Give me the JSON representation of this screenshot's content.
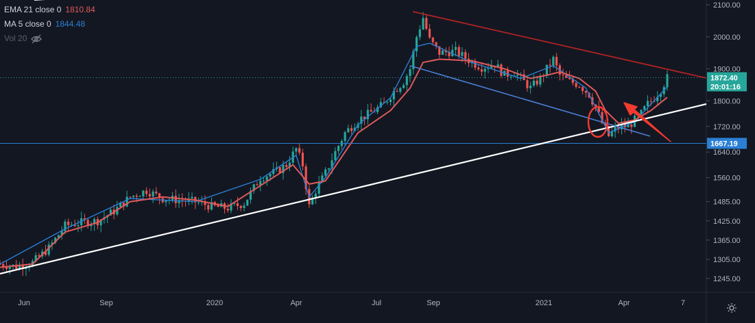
{
  "legend": {
    "ema_label": "EMA 21 close 0",
    "ema_value": "1810.84",
    "ma_label": "MA 5 close 0",
    "ma_value": "1844.48",
    "vol_label": "Vol 20",
    "vol_icon": "eye-crossed-icon"
  },
  "price_scale": {
    "last_price": "1872.40",
    "countdown": "20:01:16",
    "horizontal_level": "1667.19"
  },
  "colors": {
    "background": "#131722",
    "candle_up": "#26a69a",
    "candle_down": "#ef5350",
    "ema": "#e05a5a",
    "ma": "#2a7fd4",
    "trend_red": "#b22222",
    "trend_blue": "#4a7fd4",
    "trend_white": "#ffffff",
    "hline": "#2a7fd4",
    "annotation_red": "#f23a2f",
    "badge_green": "#26a69a",
    "badge_blue": "#2a7fd4"
  },
  "chart_data": {
    "type": "candlestick",
    "x_ticks": [
      "Jun",
      "Sep",
      "2020",
      "Apr",
      "Jul",
      "Sep",
      "2021",
      "Apr",
      "7"
    ],
    "y_ticks": [
      2100,
      2000,
      1900,
      1800,
      1720,
      1640,
      1560,
      1485,
      1425,
      1365,
      1305,
      1245
    ],
    "ylim": [
      1205,
      2110
    ],
    "close_series": [
      [
        0,
        1290
      ],
      [
        5,
        1282
      ],
      [
        10,
        1295
      ],
      [
        15,
        1340
      ],
      [
        20,
        1410
      ],
      [
        25,
        1420
      ],
      [
        30,
        1425
      ],
      [
        35,
        1455
      ],
      [
        40,
        1500
      ],
      [
        45,
        1520
      ],
      [
        50,
        1495
      ],
      [
        55,
        1490
      ],
      [
        60,
        1485
      ],
      [
        65,
        1470
      ],
      [
        70,
        1465
      ],
      [
        75,
        1480
      ],
      [
        80,
        1560
      ],
      [
        85,
        1580
      ],
      [
        88,
        1600
      ],
      [
        91,
        1650
      ],
      [
        93,
        1600
      ],
      [
        95,
        1470
      ],
      [
        97,
        1520
      ],
      [
        100,
        1575
      ],
      [
        103,
        1640
      ],
      [
        106,
        1700
      ],
      [
        110,
        1740
      ],
      [
        115,
        1770
      ],
      [
        118,
        1790
      ],
      [
        121,
        1830
      ],
      [
        124,
        1860
      ],
      [
        126,
        1900
      ],
      [
        128,
        2000
      ],
      [
        130,
        2060
      ],
      [
        132,
        1990
      ],
      [
        135,
        1950
      ],
      [
        140,
        1955
      ],
      [
        145,
        1920
      ],
      [
        148,
        1905
      ],
      [
        152,
        1915
      ],
      [
        155,
        1880
      ],
      [
        158,
        1890
      ],
      [
        161,
        1860
      ],
      [
        163,
        1840
      ],
      [
        166,
        1870
      ],
      [
        168,
        1900
      ],
      [
        170,
        1930
      ],
      [
        172,
        1880
      ],
      [
        175,
        1860
      ],
      [
        178,
        1850
      ],
      [
        181,
        1820
      ],
      [
        183,
        1780
      ],
      [
        185,
        1730
      ],
      [
        187,
        1690
      ],
      [
        189,
        1710
      ],
      [
        191,
        1720
      ],
      [
        193,
        1720
      ],
      [
        195,
        1740
      ],
      [
        197,
        1760
      ],
      [
        199,
        1790
      ],
      [
        201,
        1810
      ],
      [
        203,
        1835
      ],
      [
        205,
        1872
      ]
    ],
    "ema21": [
      [
        0,
        1280
      ],
      [
        10,
        1290
      ],
      [
        20,
        1390
      ],
      [
        30,
        1420
      ],
      [
        40,
        1485
      ],
      [
        50,
        1500
      ],
      [
        60,
        1490
      ],
      [
        70,
        1470
      ],
      [
        80,
        1535
      ],
      [
        90,
        1600
      ],
      [
        95,
        1540
      ],
      [
        100,
        1550
      ],
      [
        110,
        1700
      ],
      [
        120,
        1770
      ],
      [
        126,
        1840
      ],
      [
        130,
        1920
      ],
      [
        135,
        1930
      ],
      [
        145,
        1925
      ],
      [
        155,
        1900
      ],
      [
        163,
        1870
      ],
      [
        168,
        1880
      ],
      [
        172,
        1890
      ],
      [
        178,
        1870
      ],
      [
        183,
        1830
      ],
      [
        186,
        1770
      ],
      [
        190,
        1730
      ],
      [
        195,
        1740
      ],
      [
        200,
        1770
      ],
      [
        205,
        1811
      ]
    ],
    "ma5": [
      [
        0,
        1290
      ],
      [
        20,
        1400
      ],
      [
        40,
        1495
      ],
      [
        60,
        1485
      ],
      [
        80,
        1555
      ],
      [
        91,
        1630
      ],
      [
        95,
        1500
      ],
      [
        100,
        1560
      ],
      [
        110,
        1725
      ],
      [
        120,
        1810
      ],
      [
        128,
        1970
      ],
      [
        132,
        1980
      ],
      [
        145,
        1920
      ],
      [
        160,
        1870
      ],
      [
        170,
        1910
      ],
      [
        180,
        1840
      ],
      [
        187,
        1700
      ],
      [
        195,
        1735
      ],
      [
        205,
        1844
      ]
    ],
    "current_price": 1872.4,
    "horizontal_line": 1667.19,
    "annotations": [
      "upper-red-trendline",
      "lower-blue-channel",
      "rising-white-support",
      "red-circle",
      "red-arrow"
    ]
  }
}
